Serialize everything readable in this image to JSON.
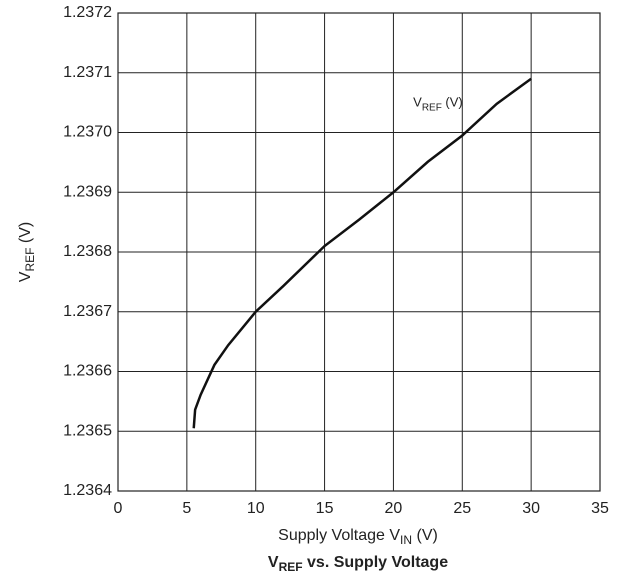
{
  "chart_data": {
    "type": "line",
    "title": {
      "main": "V",
      "sub": "REF",
      "rest": " vs. Supply Voltage"
    },
    "x_label": {
      "main": "Supply Voltage V",
      "sub": "IN",
      "rest": " (V)"
    },
    "y_label": {
      "main": "V",
      "sub": "REF",
      "rest": " (V)"
    },
    "annotation": {
      "main": "V",
      "sub": "REF",
      "rest": " (V)"
    },
    "x": [
      5.5,
      5.6,
      6,
      7,
      8,
      10,
      12,
      15,
      17.5,
      20,
      22.5,
      25,
      27.5,
      30
    ],
    "values": [
      1.236505,
      1.236536,
      1.236561,
      1.236611,
      1.236644,
      1.2367,
      1.236743,
      1.23681,
      1.236854,
      1.2369,
      1.236951,
      1.236995,
      1.237048,
      1.23709
    ],
    "color": "#111111",
    "xlim": [
      0,
      35
    ],
    "xticks": [
      0,
      5,
      10,
      15,
      20,
      25,
      30,
      35
    ],
    "ylim": [
      1.2364,
      1.2372
    ],
    "yticks": [
      1.2364,
      1.2365,
      1.2366,
      1.2367,
      1.2368,
      1.2369,
      {
        "value": 1.237,
        "label": "1.2370"
      },
      1.2371,
      1.2372
    ],
    "grid": true
  }
}
